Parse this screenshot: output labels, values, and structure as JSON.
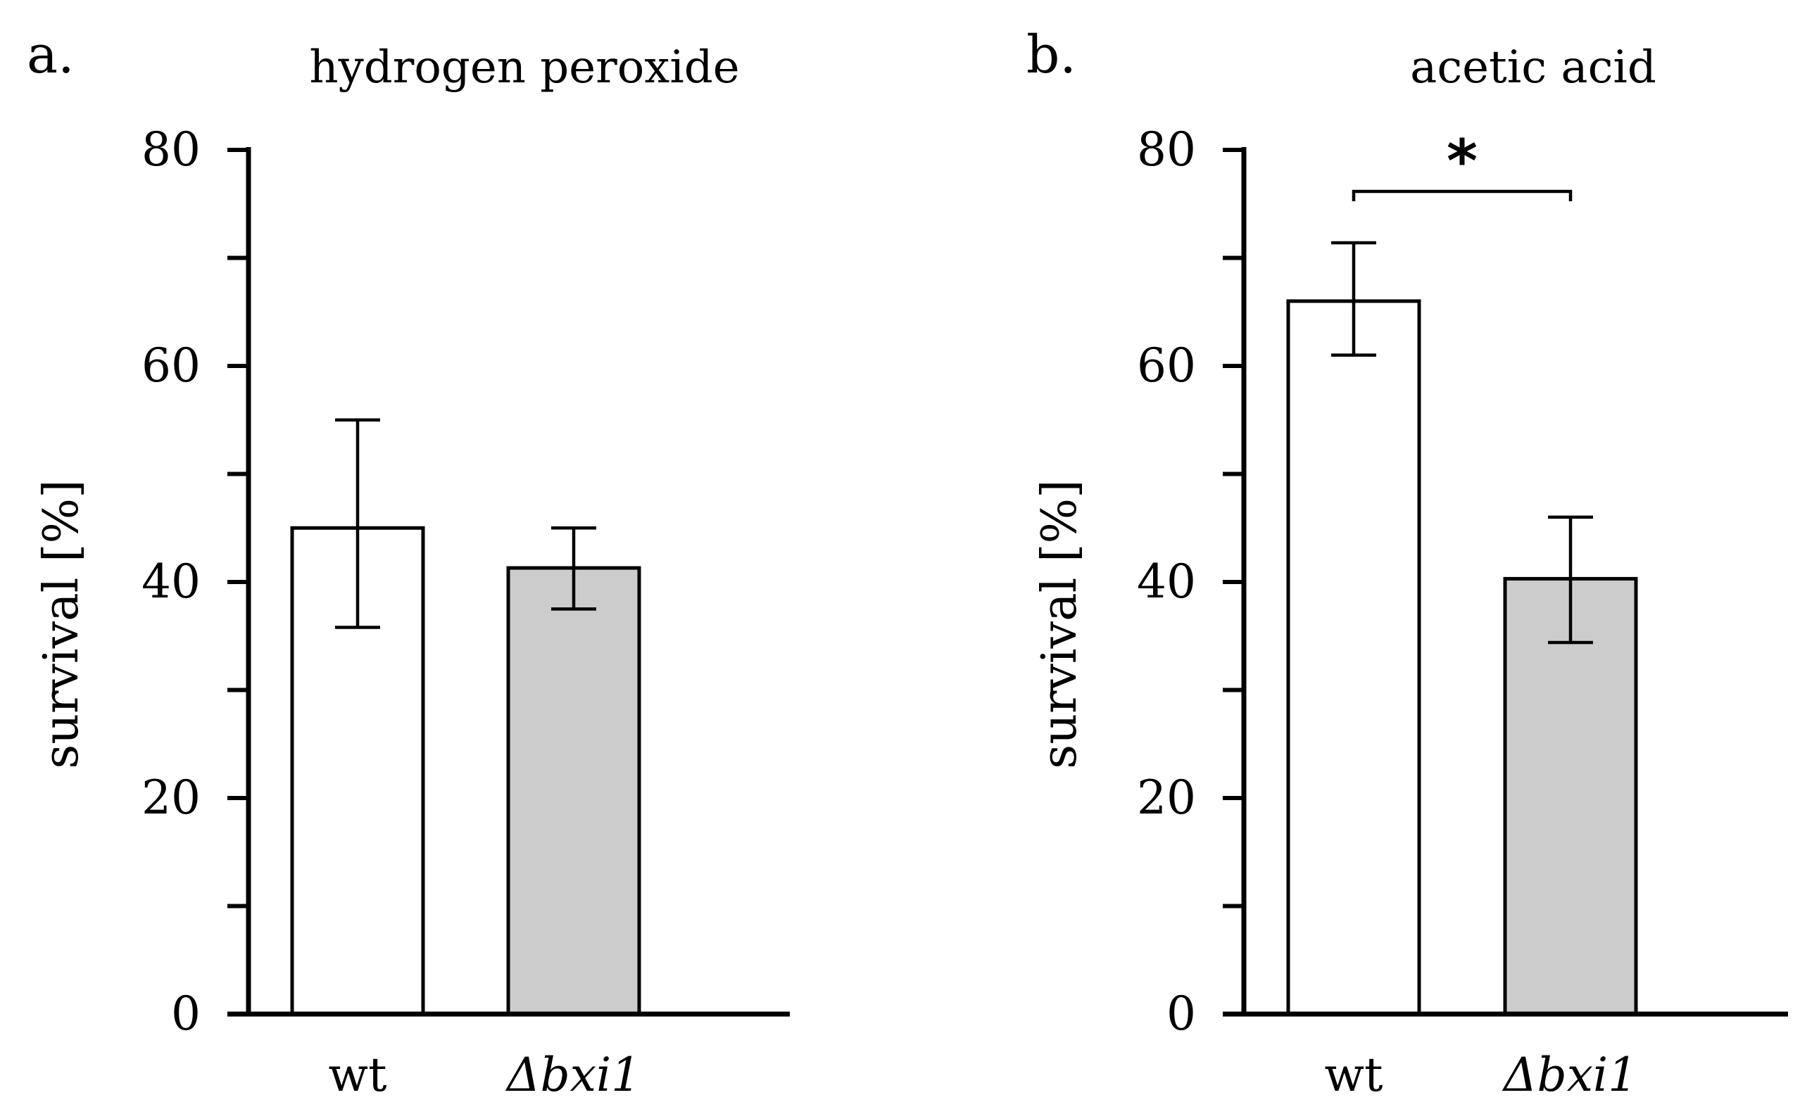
{
  "chart_data": [
    {
      "type": "bar",
      "panel_label": "a.",
      "title": "hydrogen peroxide",
      "xlabel": "",
      "ylabel": "survival [%]",
      "ylim": [
        0,
        80
      ],
      "yticks": [
        0,
        20,
        40,
        60,
        80
      ],
      "categories": [
        "wt",
        "Δbxi1"
      ],
      "values": [
        45,
        41.3
      ],
      "errors_low": [
        35.8,
        37.5
      ],
      "errors_high": [
        55,
        45
      ],
      "bar_colors": [
        "#ffffff",
        "#cccccc"
      ]
    },
    {
      "type": "bar",
      "panel_label": "b.",
      "title": "acetic acid",
      "xlabel": "",
      "ylabel": "survival [%]",
      "ylim": [
        0,
        80
      ],
      "yticks": [
        0,
        20,
        40,
        60,
        80
      ],
      "categories": [
        "wt",
        "Δbxi1"
      ],
      "values": [
        66,
        40.3
      ],
      "errors_low": [
        61,
        34.4
      ],
      "errors_high": [
        71.4,
        46
      ],
      "bar_colors": [
        "#ffffff",
        "#cccccc"
      ],
      "significance": {
        "between": [
          0,
          1
        ],
        "label": "*"
      }
    }
  ]
}
